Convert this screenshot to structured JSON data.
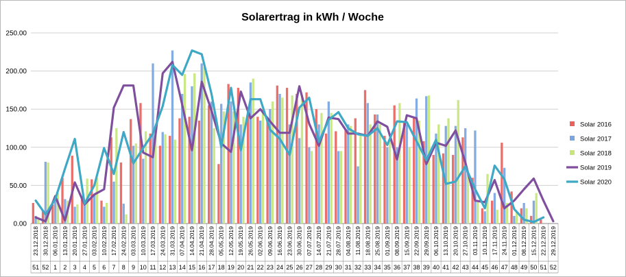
{
  "chart_data": {
    "type": "bar",
    "title": "Solarertrag in kWh / Woche",
    "xlabel": "",
    "ylabel": "",
    "ylim": [
      0,
      250
    ],
    "yticks": [
      "0.00",
      "50.00",
      "100.00",
      "150.00",
      "200.00",
      "250.00"
    ],
    "grid": true,
    "legend": "right",
    "dates": [
      "23.12.2018",
      "30.12.2018",
      "06.01.2019",
      "13.01.2019",
      "20.01.2019",
      "27.01.2019",
      "03.02.2019",
      "10.02.2019",
      "17.02.2019",
      "24.02.2019",
      "03.03.2019",
      "10.03.2019",
      "17.03.2019",
      "24.03.2019",
      "31.03.2019",
      "07.04.2019",
      "14.04.2019",
      "21.04.2019",
      "28.04.2019",
      "05.05.2019",
      "12.05.2019",
      "19.05.2019",
      "26.05.2019",
      "02.06.2019",
      "09.06.2019",
      "16.06.2019",
      "23.06.2019",
      "30.06.2019",
      "07.07.2019",
      "14.07.2019",
      "21.07.2019",
      "28.07.2019",
      "04.08.2019",
      "11.08.2019",
      "18.08.2019",
      "25.08.2019",
      "01.09.2019",
      "08.09.2019",
      "15.09.2019",
      "22.09.2019",
      "29.09.2019",
      "06.10.2019",
      "13.10.2019",
      "20.10.2019",
      "27.10.2019",
      "03.11.2019",
      "10.11.2019",
      "17.11.2019",
      "24.11.2019",
      "01.12.2019",
      "08.12.2019",
      "15.12.2019",
      "22.12.2019",
      "29.12.2019"
    ],
    "weeks": [
      "51",
      "52",
      "1",
      "2",
      "3",
      "4",
      "5",
      "6",
      "7",
      "8",
      "9",
      "10",
      "11",
      "12",
      "13",
      "14",
      "15",
      "16",
      "17",
      "18",
      "19",
      "20",
      "21",
      "22",
      "23",
      "24",
      "25",
      "26",
      "27",
      "28",
      "29",
      "30",
      "31",
      "32",
      "33",
      "34",
      "35",
      "36",
      "37",
      "38",
      "39",
      "40",
      "41",
      "42",
      "43",
      "44",
      "45",
      "46",
      "47",
      "48",
      "49",
      "50",
      "51",
      "52"
    ],
    "series": [
      {
        "name": "Solar 2016",
        "kind": "bar",
        "color": "#e8635e",
        "values": [
          27,
          17,
          25,
          60,
          89,
          36,
          58,
          30,
          113,
          80,
          137,
          158,
          118,
          102,
          115,
          138,
          140,
          135,
          155,
          78,
          183,
          178,
          150,
          140,
          135,
          181,
          178,
          170,
          172,
          150,
          118,
          121,
          123,
          138,
          175,
          143,
          115,
          155,
          132,
          138,
          108,
          90,
          92,
          90,
          113,
          60,
          20,
          30,
          106,
          42,
          20,
          10,
          5,
          0
        ]
      },
      {
        "name": "Solar 2017",
        "kind": "bar",
        "color": "#7aa5e0",
        "values": [
          10,
          81,
          32,
          32,
          22,
          28,
          38,
          22,
          55,
          26,
          102,
          85,
          210,
          120,
          227,
          170,
          180,
          210,
          160,
          157,
          160,
          130,
          185,
          135,
          150,
          170,
          130,
          112,
          100,
          130,
          160,
          95,
          130,
          75,
          158,
          143,
          100,
          100,
          130,
          164,
          167,
          118,
          128,
          128,
          125,
          122,
          16,
          40,
          73,
          10,
          27,
          30,
          0,
          0
        ]
      },
      {
        "name": "Solar 2018",
        "kind": "bar",
        "color": "#c6e67c",
        "values": [
          5,
          80,
          40,
          30,
          25,
          59,
          60,
          27,
          125,
          12,
          105,
          121,
          120,
          117,
          110,
          196,
          197,
          205,
          125,
          147,
          147,
          140,
          190,
          150,
          160,
          165,
          168,
          168,
          95,
          145,
          145,
          95,
          128,
          115,
          130,
          130,
          108,
          158,
          100,
          135,
          168,
          130,
          138,
          162,
          65,
          28,
          65,
          18,
          27,
          15,
          20,
          40,
          0,
          0
        ]
      },
      {
        "name": "Solar 2019",
        "kind": "line",
        "color": "#7f4f9e",
        "values": [
          8,
          3,
          36,
          4,
          54,
          25,
          38,
          45,
          152,
          181,
          181,
          93,
          87,
          197,
          212,
          156,
          96,
          186,
          148,
          105,
          94,
          173,
          138,
          150,
          134,
          119,
          119,
          180,
          131,
          102,
          139,
          137,
          118,
          118,
          115,
          134,
          127,
          84,
          142,
          138,
          78,
          106,
          102,
          122,
          80,
          30,
          28,
          57,
          20,
          30,
          45,
          59,
          30,
          3
        ]
      },
      {
        "name": "Solar 2020",
        "kind": "line",
        "color": "#3ea8c5",
        "values": [
          30,
          12,
          32,
          72,
          111,
          26,
          50,
          99,
          65,
          120,
          79,
          99,
          118,
          154,
          208,
          195,
          227,
          222,
          170,
          100,
          178,
          96,
          163,
          163,
          123,
          111,
          90,
          152,
          165,
          107,
          136,
          146,
          125,
          117,
          115,
          125,
          103,
          134,
          133,
          108,
          83,
          110,
          52,
          55,
          75,
          45,
          20,
          76,
          58,
          19,
          5,
          2,
          8,
          null
        ]
      }
    ]
  }
}
